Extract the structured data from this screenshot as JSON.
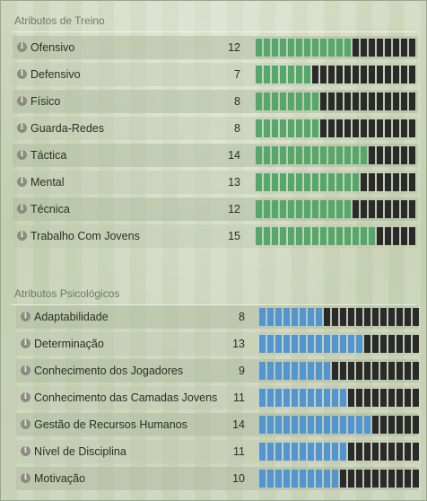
{
  "training": {
    "title": "Atributos de Treino",
    "max": 20,
    "color": "#55a86c",
    "attributes": [
      {
        "label": "Ofensivo",
        "value": 12
      },
      {
        "label": "Defensivo",
        "value": 7
      },
      {
        "label": "Físico",
        "value": 8
      },
      {
        "label": "Guarda-Redes",
        "value": 8
      },
      {
        "label": "Táctica",
        "value": 14
      },
      {
        "label": "Mental",
        "value": 13
      },
      {
        "label": "Técnica",
        "value": 12
      },
      {
        "label": "Trabalho Com Jovens",
        "value": 15
      }
    ]
  },
  "psychological": {
    "title": "Atributos Psicológicos",
    "max": 20,
    "color": "#5195d3",
    "attributes": [
      {
        "label": "Adaptabilidade",
        "value": 8
      },
      {
        "label": "Determinação",
        "value": 13
      },
      {
        "label": "Conhecimento dos Jogadores",
        "value": 9
      },
      {
        "label": "Conhecimento das Camadas Jovens",
        "value": 11
      },
      {
        "label": "Gestão de Recursos Humanos",
        "value": 14
      },
      {
        "label": "Nível de Disciplina",
        "value": 11
      },
      {
        "label": "Motivação",
        "value": 10
      }
    ]
  },
  "icons": {
    "info": "info-icon"
  },
  "empty_color": "#2a2a2a"
}
